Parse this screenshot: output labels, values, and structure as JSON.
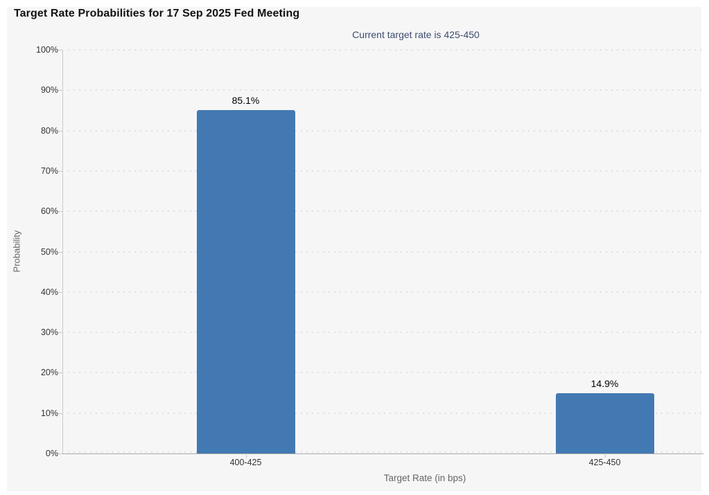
{
  "header": {
    "title": "Target Rate Probabilities for 17 Sep 2025 Fed Meeting",
    "subtitle": "Current target rate is 425-450"
  },
  "chart_data": {
    "type": "bar",
    "title": "Target Rate Probabilities for 17 Sep 2025 Fed Meeting",
    "subtitle": "Current target rate is 425-450",
    "categories": [
      "400-425",
      "425-450"
    ],
    "values": [
      85.1,
      14.9
    ],
    "value_labels": [
      "85.1%",
      "14.9%"
    ],
    "xlabel": "Target Rate (in bps)",
    "ylabel": "Probability",
    "ylim": [
      0,
      100
    ],
    "ytick_step": 10,
    "ytick_labels": [
      "0%",
      "10%",
      "20%",
      "30%",
      "40%",
      "50%",
      "60%",
      "70%",
      "80%",
      "90%",
      "100%"
    ],
    "legend": "none",
    "grid": "horizontal-dotted"
  },
  "colors": {
    "bar": "#4379b2",
    "panel_background": "#f6f6f7",
    "page_background": "#ffffff",
    "subtitle_text": "#3e4c6e",
    "gridline": "#dededf",
    "axis_line": "#c9c9cb",
    "tick_label": "#333333",
    "axis_title": "#666666"
  }
}
